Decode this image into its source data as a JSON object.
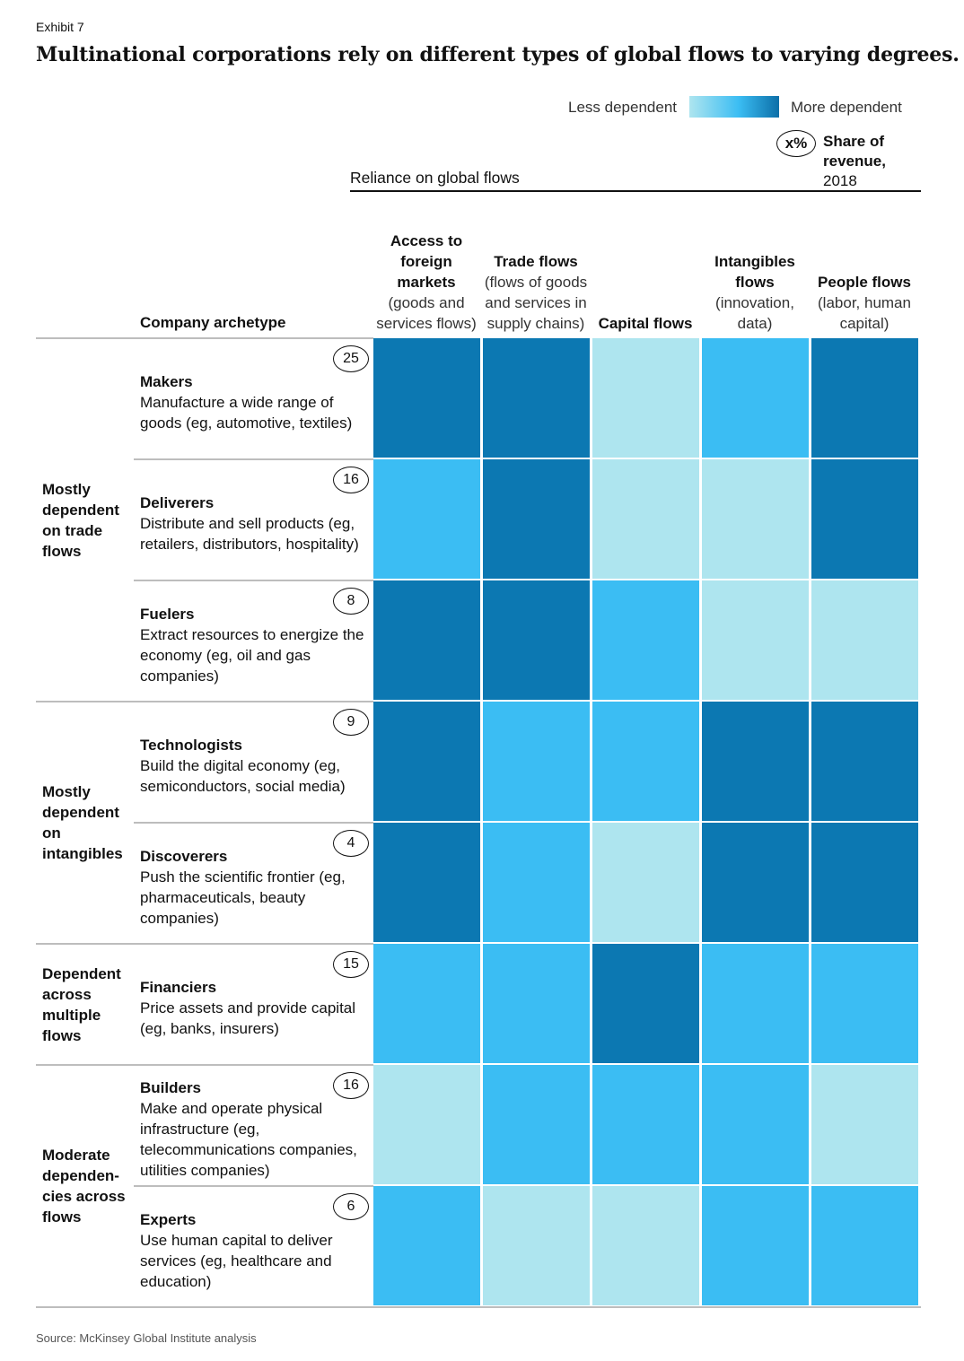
{
  "exhibit": "Exhibit 7",
  "title": "Multinational corporations rely on different types of global flows to varying degrees.",
  "legend": {
    "less": "Less dependent",
    "more": "More dependent",
    "share_symbol": "x%",
    "share_label_bold": "Share of revenue,",
    "share_label_year": "2018"
  },
  "reliance_label": "Reliance on global flows",
  "archetype_header": "Company archetype",
  "colors": {
    "level_1": "#aee5ef",
    "level_2": "#3bbdf3",
    "level_3": "#0c78b2"
  },
  "chart_data": {
    "type": "heatmap",
    "columns": [
      {
        "bold": "Access to foreign markets",
        "note": "(goods and services flows)"
      },
      {
        "bold": "Trade flows",
        "note": "(flows of goods and services in supply chains)"
      },
      {
        "bold": "Capital flows",
        "note": ""
      },
      {
        "bold": "Intangibles flows",
        "note": "(innovation, data)"
      },
      {
        "bold": "People flows",
        "note": "(labor, human capital)"
      }
    ],
    "scale": "1 = less dependent, 3 = more dependent",
    "rows": [
      {
        "name": "Makers",
        "desc": "Manufacture a wide range of goods (eg, automotive, textiles)",
        "share": 25,
        "levels": [
          3,
          3,
          1,
          2,
          3
        ]
      },
      {
        "name": "Deliverers",
        "desc": "Distribute and sell products (eg, retailers, distributors, hospitality)",
        "share": 16,
        "levels": [
          2,
          3,
          1,
          1,
          3
        ]
      },
      {
        "name": "Fuelers",
        "desc": "Extract resources to energize the economy (eg, oil and gas companies)",
        "share": 8,
        "levels": [
          3,
          3,
          2,
          1,
          1
        ]
      },
      {
        "name": "Technologists",
        "desc": "Build the digital economy (eg, semiconductors, social media)",
        "share": 9,
        "levels": [
          3,
          2,
          2,
          3,
          3
        ]
      },
      {
        "name": "Discoverers",
        "desc": "Push the scientific frontier (eg, pharmaceuticals, beauty companies)",
        "share": 4,
        "levels": [
          3,
          2,
          1,
          3,
          3
        ]
      },
      {
        "name": "Financiers",
        "desc": "Price assets and provide capital (eg, banks, insurers)",
        "share": 15,
        "levels": [
          2,
          2,
          3,
          2,
          2
        ]
      },
      {
        "name": "Builders",
        "desc": "Make and operate physical infrastructure (eg, telecommunications companies, utilities companies)",
        "share": 16,
        "levels": [
          1,
          2,
          2,
          2,
          1
        ]
      },
      {
        "name": "Experts",
        "desc": "Use human capital to deliver services (eg, healthcare and education)",
        "share": 6,
        "levels": [
          2,
          1,
          1,
          2,
          2
        ]
      }
    ],
    "groups": [
      {
        "label": "Mostly dependent on trade flows",
        "rows": [
          0,
          1,
          2
        ]
      },
      {
        "label": "Mostly dependent on intangibles",
        "rows": [
          3,
          4
        ]
      },
      {
        "label": "Dependent across multiple flows",
        "rows": [
          5
        ]
      },
      {
        "label": "Moderate dependen-cies across flows",
        "rows": [
          6,
          7
        ]
      }
    ]
  },
  "source": "Source: McKinsey Global Institute analysis"
}
